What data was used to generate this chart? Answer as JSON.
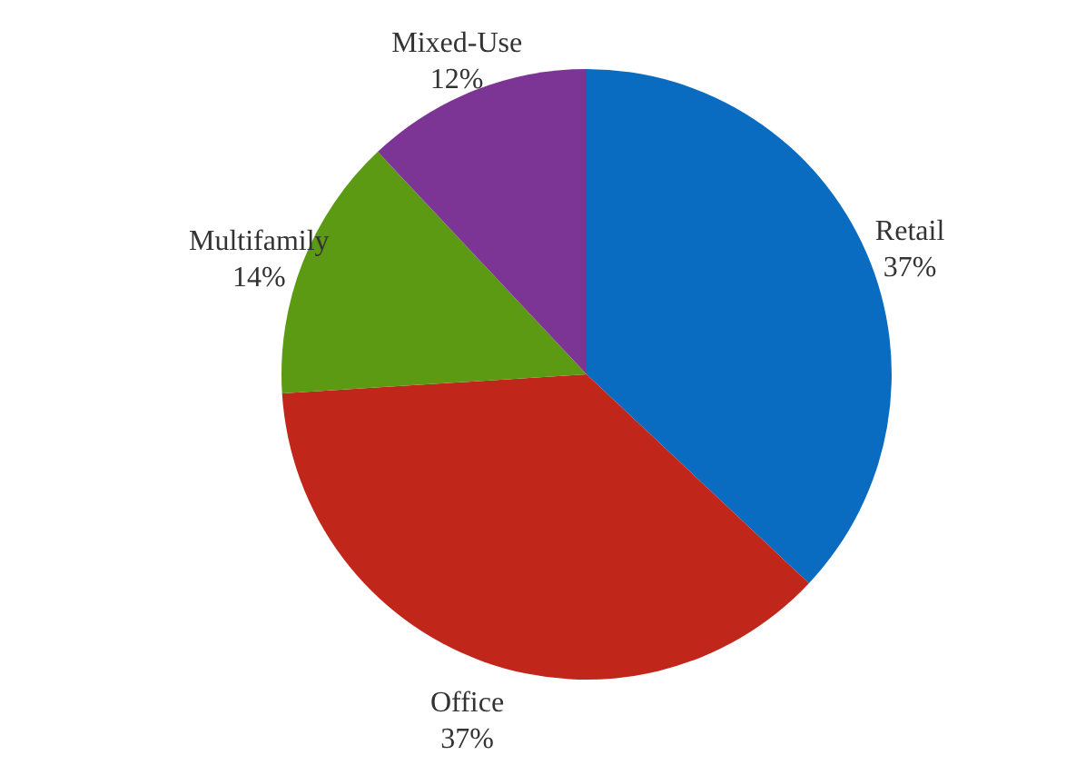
{
  "chart_data": {
    "type": "pie",
    "categories": [
      "Retail",
      "Office",
      "Multifamily",
      "Mixed-Use"
    ],
    "values": [
      37,
      37,
      14,
      12
    ],
    "colors": [
      "#0a6cc0",
      "#c0261a",
      "#5b9a12",
      "#7d3595"
    ],
    "value_labels": [
      "37%",
      "37%",
      "14%",
      "12%"
    ]
  }
}
